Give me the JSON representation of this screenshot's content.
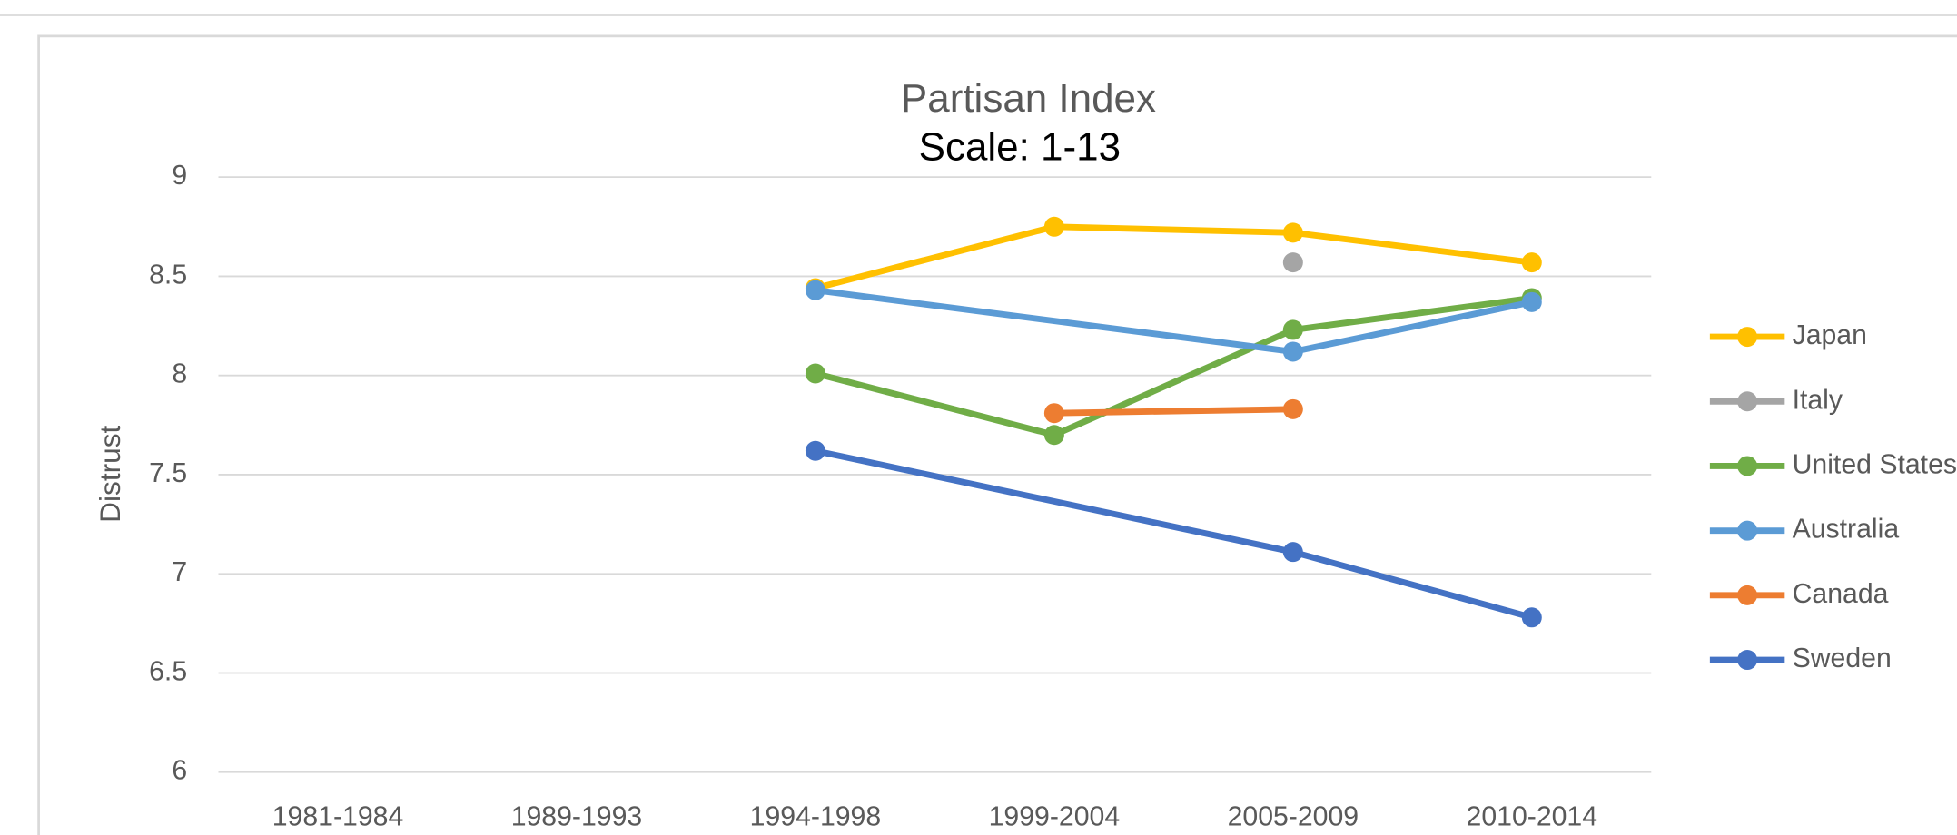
{
  "chart_data": {
    "type": "line",
    "title": "Partisan Index",
    "subtitle": "Scale: 1-13",
    "y_label": "Distrust",
    "categories": [
      "1981-1984",
      "1989-1993",
      "1994-1998",
      "1999-2004",
      "2005-2009",
      "2010-2014"
    ],
    "series": [
      {
        "name": "Japan",
        "color": "#FFC000",
        "values": [
          null,
          null,
          8.44,
          8.75,
          8.72,
          8.57
        ]
      },
      {
        "name": "Italy",
        "color": "#A5A5A5",
        "values": [
          null,
          null,
          null,
          null,
          8.57,
          null
        ]
      },
      {
        "name": "United States",
        "color": "#70AD47",
        "values": [
          null,
          null,
          8.01,
          7.7,
          8.23,
          8.39
        ]
      },
      {
        "name": "Australia",
        "color": "#5B9BD5",
        "values": [
          null,
          null,
          8.43,
          null,
          8.12,
          8.37
        ]
      },
      {
        "name": "Canada",
        "color": "#ED7D31",
        "values": [
          null,
          null,
          null,
          7.81,
          7.83,
          null
        ]
      },
      {
        "name": "Sweden",
        "color": "#4472C4",
        "values": [
          null,
          null,
          7.62,
          null,
          7.11,
          6.78
        ]
      }
    ],
    "ylim": [
      6,
      9
    ],
    "yticks": [
      6,
      6.5,
      7,
      7.5,
      8,
      8.5,
      9
    ],
    "grid": true,
    "connect_gaps": true,
    "legend": "right"
  }
}
